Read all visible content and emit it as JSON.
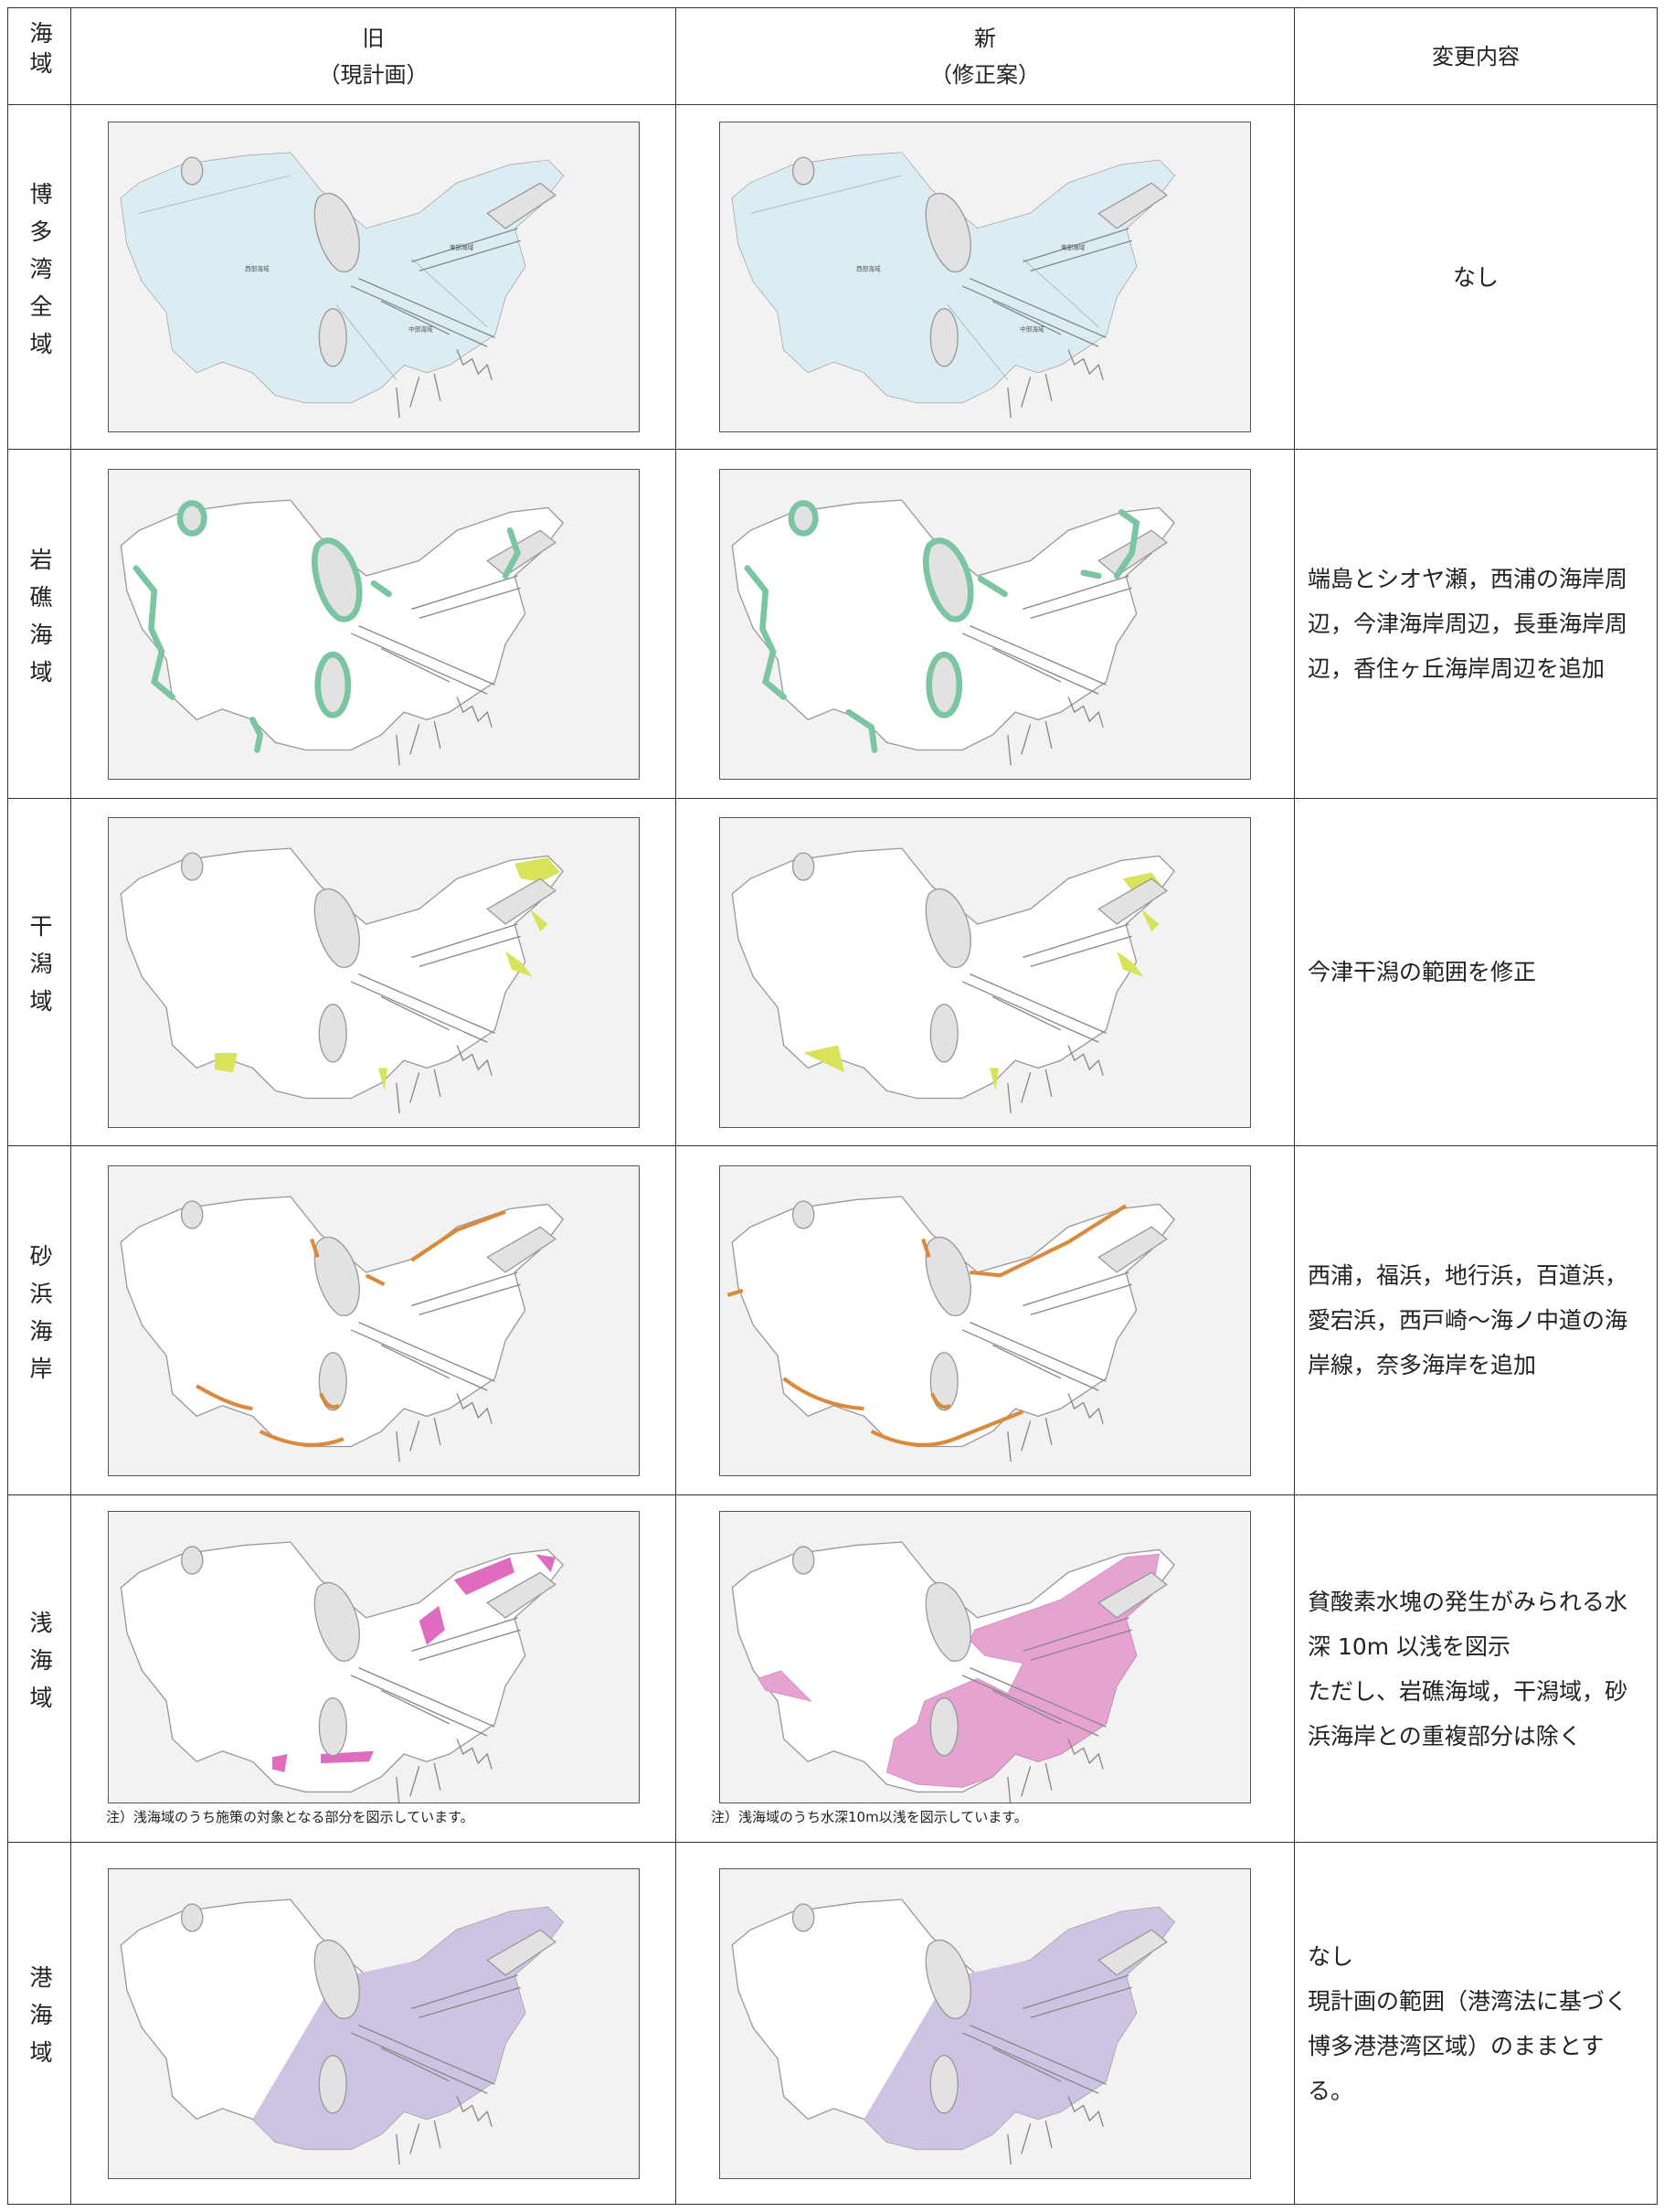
{
  "header": {
    "area": "海域",
    "old": [
      "旧",
      "（現計画）"
    ],
    "new": [
      "新",
      "（修正案）"
    ],
    "changes": "変更内容"
  },
  "rows": [
    {
      "area": "博多湾全域",
      "old_map": {
        "labels": [
          "西部海域",
          "東部海域",
          "中部海域"
        ]
      },
      "new_map": {
        "labels": [
          "西部海域",
          "東部海域",
          "中部海域"
        ]
      },
      "changes": [
        "なし"
      ]
    },
    {
      "area": "岩礁海域",
      "changes": [
        "端島とシオヤ瀬，西浦の海岸周辺，今津海岸周辺，長垂海岸周辺，香住ヶ丘海岸周辺を追加"
      ]
    },
    {
      "area": "干潟域",
      "changes": [
        "今津干潟の範囲を修正"
      ]
    },
    {
      "area": "砂浜海岸",
      "changes": [
        "西浦，福浜，地行浜，百道浜，愛宕浜，西戸崎～海ノ中道の海岸線，奈多海岸を追加"
      ]
    },
    {
      "area": "浅海域",
      "old_map": {
        "note": "注）浅海域のうち施策の対象となる部分を図示しています。"
      },
      "new_map": {
        "note": "注）浅海域のうち水深10m以浅を図示しています。"
      },
      "changes": [
        "貧酸素水塊の発生がみられる水深 10m 以浅を図示",
        "ただし、岩礁海域，干潟域，砂浜海岸との重複部分は除く"
      ]
    },
    {
      "area": "港海域",
      "changes": [
        "なし",
        "現計画の範囲（港湾法に基づく博多港港湾区域）のままとする。"
      ]
    }
  ]
}
